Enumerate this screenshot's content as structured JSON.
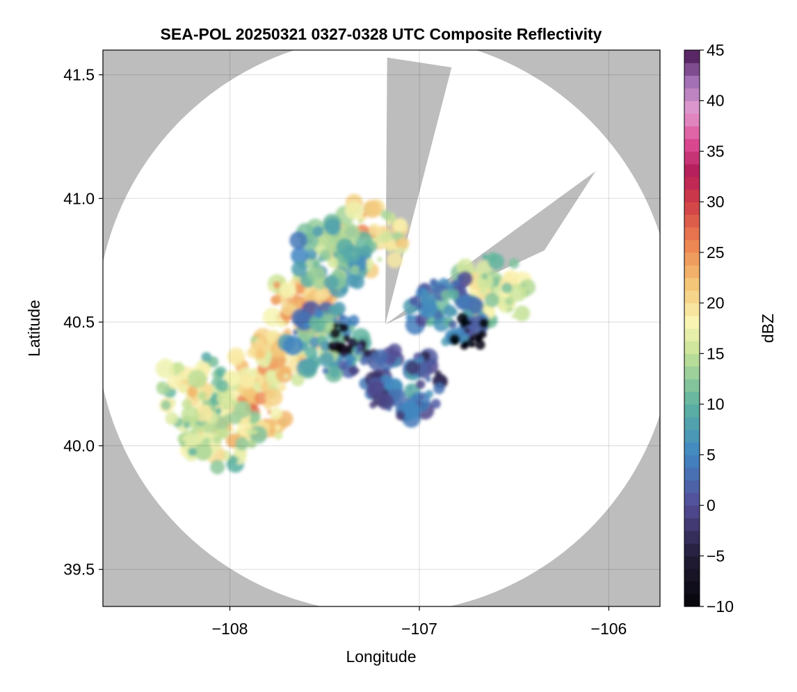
{
  "chart_data": {
    "type": "heatmap",
    "subtype": "radar-composite-reflectivity-map",
    "title": "SEA-POL 20250321 0327-0328 UTC Composite Reflectivity",
    "xlabel": "Longitude",
    "ylabel": "Latitude",
    "xlim": [
      -108.67,
      -105.73
    ],
    "ylim": [
      39.35,
      41.6
    ],
    "xticks": [
      -108,
      -107,
      -106
    ],
    "xtick_labels": [
      "−108",
      "−107",
      "−106"
    ],
    "yticks": [
      39.5,
      40.0,
      40.5,
      41.0,
      41.5
    ],
    "ytick_labels": [
      "39.5",
      "40.0",
      "40.5",
      "41.0",
      "41.5"
    ],
    "grid": true,
    "background_color": "#bdbdbd",
    "coverage_color": "#ffffff",
    "radar_site": {
      "lon": -107.18,
      "lat": 40.49
    },
    "coverage_radius_km": 130,
    "blocked_sectors": [
      {
        "lon1": -106.83,
        "lat1": 41.53,
        "lon2": -107.17,
        "lat2": 41.57
      },
      {
        "lon1": -106.34,
        "lat1": 40.79,
        "lon2": -106.07,
        "lat2": 41.11
      }
    ],
    "colorbar": {
      "label": "dBZ",
      "min": -10,
      "max": 45,
      "step": 1.25,
      "ticks": [
        -10,
        -5,
        0,
        5,
        10,
        15,
        20,
        25,
        30,
        35,
        40,
        45
      ],
      "tick_labels": [
        "−10",
        "−5",
        "0",
        "5",
        "10",
        "15",
        "20",
        "25",
        "30",
        "35",
        "40",
        "45"
      ],
      "colormap": "spectral-like: black → dark purple → blue → teal → green → pale yellow → orange → red → magenta → lilac → deep purple"
    },
    "echo_cells": [
      {
        "lon": -107.62,
        "lat": 40.55,
        "dbz": 26
      },
      {
        "lon": -107.8,
        "lat": 40.3,
        "dbz": 23
      },
      {
        "lon": -107.9,
        "lat": 40.12,
        "dbz": 24
      },
      {
        "lon": -107.27,
        "lat": 40.85,
        "dbz": 23
      },
      {
        "lon": -107.45,
        "lat": 40.77,
        "dbz": 14
      },
      {
        "lon": -107.5,
        "lat": 40.42,
        "dbz": 12
      },
      {
        "lon": -107.44,
        "lat": 40.43,
        "dbz": -6
      },
      {
        "lon": -107.33,
        "lat": 40.36,
        "dbz": 4
      },
      {
        "lon": -107.08,
        "lat": 40.25,
        "dbz": 6
      },
      {
        "lon": -106.6,
        "lat": 40.63,
        "dbz": 18
      },
      {
        "lon": -106.85,
        "lat": 40.55,
        "dbz": 9
      },
      {
        "lon": -108.05,
        "lat": 40.05,
        "dbz": 20
      },
      {
        "lon": -108.18,
        "lat": 40.22,
        "dbz": 19
      },
      {
        "lon": -106.74,
        "lat": 40.46,
        "dbz": -8
      }
    ]
  }
}
